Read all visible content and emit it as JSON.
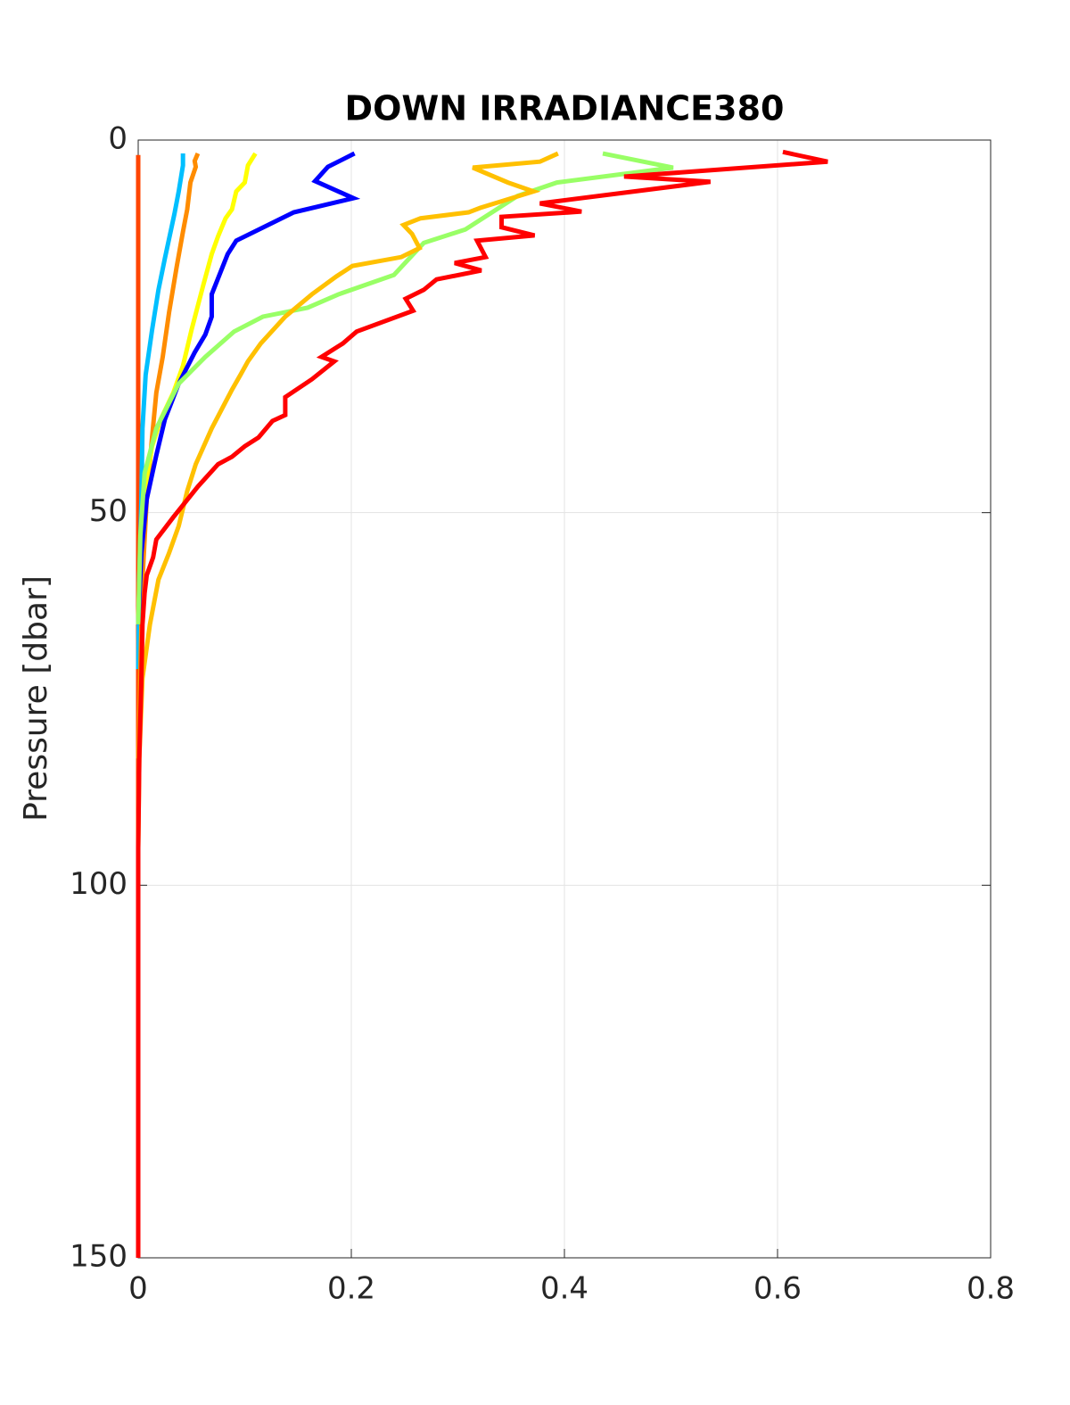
{
  "chart_data": {
    "type": "line",
    "title": "DOWN IRRADIANCE380",
    "y_label": "Pressure [dbar]",
    "xlim": [
      0,
      0.8
    ],
    "xticks": [
      0,
      0.2,
      0.4,
      0.6,
      0.8
    ],
    "ylim": [
      0,
      150
    ],
    "yticks": [
      0,
      50,
      100,
      150
    ],
    "y_reversed": true,
    "grid": true,
    "series": [
      {
        "color": "#ff4500",
        "pressure": [
          2,
          150
        ],
        "values": [
          0,
          0
        ]
      },
      {
        "color": "#00bfff",
        "pressure": [
          1.8,
          3.4,
          6.9,
          9.9,
          15.9,
          20.1,
          25.5,
          31.5,
          38.7,
          48.2,
          59,
          71
        ],
        "values": [
          0.042,
          0.042,
          0.038,
          0.034,
          0.025,
          0.019,
          0.013,
          0.007,
          0.004,
          0.003,
          0.001,
          0
        ]
      },
      {
        "color": "#ff8c00",
        "pressure": [
          1.8,
          2.8,
          3.6,
          5.7,
          9.3,
          12.3,
          17.1,
          23.1,
          29.1,
          33.9,
          39.9,
          48.2,
          59,
          71,
          83
        ],
        "values": [
          0.056,
          0.053,
          0.054,
          0.049,
          0.046,
          0.042,
          0.036,
          0.029,
          0.023,
          0.017,
          0.013,
          0.008,
          0.004,
          0.002,
          0
        ]
      },
      {
        "color": "#ffff00",
        "pressure": [
          1.8,
          3.4,
          5.7,
          6.9,
          9.3,
          10.5,
          12.9,
          15.3,
          19.5,
          25.5,
          30.3,
          33.9,
          37.5,
          41.1,
          47.1,
          55.4,
          65
        ],
        "values": [
          0.11,
          0.103,
          0.1,
          0.092,
          0.088,
          0.082,
          0.075,
          0.069,
          0.061,
          0.05,
          0.042,
          0.033,
          0.021,
          0.013,
          0.006,
          0.002,
          0
        ]
      },
      {
        "color": "#0000ff",
        "pressure": [
          1.8,
          3.6,
          5.5,
          7.8,
          9.7,
          13.5,
          15.3,
          20.7,
          23.7,
          26.1,
          28.5,
          32.7,
          37.5,
          42.3,
          48.2,
          55.4,
          65
        ],
        "values": [
          0.203,
          0.178,
          0.166,
          0.202,
          0.146,
          0.092,
          0.084,
          0.069,
          0.069,
          0.063,
          0.053,
          0.038,
          0.025,
          0.017,
          0.008,
          0.003,
          0
        ]
      },
      {
        "color": "#99ff66",
        "pressure": [
          1.8,
          3.7,
          5.7,
          7.5,
          12,
          13.8,
          18.1,
          20.7,
          22.5,
          23.7,
          25.7,
          29.1,
          32.7,
          38.7,
          44.7,
          53.1,
          65
        ],
        "values": [
          0.436,
          0.502,
          0.393,
          0.356,
          0.307,
          0.268,
          0.24,
          0.188,
          0.159,
          0.117,
          0.09,
          0.063,
          0.038,
          0.017,
          0.006,
          0.002,
          0
        ]
      },
      {
        "color": "#ffc000",
        "pressure": [
          1.8,
          2.9,
          3.7,
          5.7,
          6.9,
          9.1,
          9.7,
          10.5,
          11.4,
          12.6,
          14.5,
          15.7,
          16.9,
          18.3,
          20.7,
          23.7,
          27.3,
          29.7,
          31.5,
          33.5,
          38.7,
          43.5,
          47.1,
          51.8,
          55.4,
          59,
          65,
          72.2,
          83,
          95
        ],
        "values": [
          0.394,
          0.377,
          0.314,
          0.347,
          0.371,
          0.321,
          0.31,
          0.265,
          0.249,
          0.257,
          0.264,
          0.247,
          0.201,
          0.186,
          0.163,
          0.138,
          0.115,
          0.103,
          0.096,
          0.088,
          0.069,
          0.054,
          0.046,
          0.038,
          0.029,
          0.019,
          0.011,
          0.004,
          0.001,
          0
        ]
      },
      {
        "color": "#ff0000",
        "pressure": [
          1.6,
          2.9,
          4.9,
          5.6,
          8.5,
          9.6,
          10.3,
          11.7,
          12.8,
          13.5,
          15.7,
          16.5,
          17.5,
          18.7,
          20.1,
          21.3,
          22.9,
          25.7,
          27.3,
          29.1,
          29.7,
          32.1,
          34.5,
          36.9,
          37.7,
          39.9,
          41.1,
          42.5,
          43.5,
          46.5,
          50.6,
          53.6,
          56,
          58.4,
          60.8,
          65,
          72.2,
          83,
          95,
          150
        ],
        "values": [
          0.605,
          0.647,
          0.456,
          0.537,
          0.377,
          0.416,
          0.341,
          0.341,
          0.372,
          0.318,
          0.326,
          0.297,
          0.322,
          0.28,
          0.268,
          0.251,
          0.258,
          0.205,
          0.192,
          0.172,
          0.184,
          0.163,
          0.138,
          0.138,
          0.126,
          0.113,
          0.1,
          0.088,
          0.075,
          0.056,
          0.033,
          0.017,
          0.014,
          0.008,
          0.006,
          0.004,
          0.003,
          0.001,
          0,
          0
        ]
      }
    ]
  }
}
